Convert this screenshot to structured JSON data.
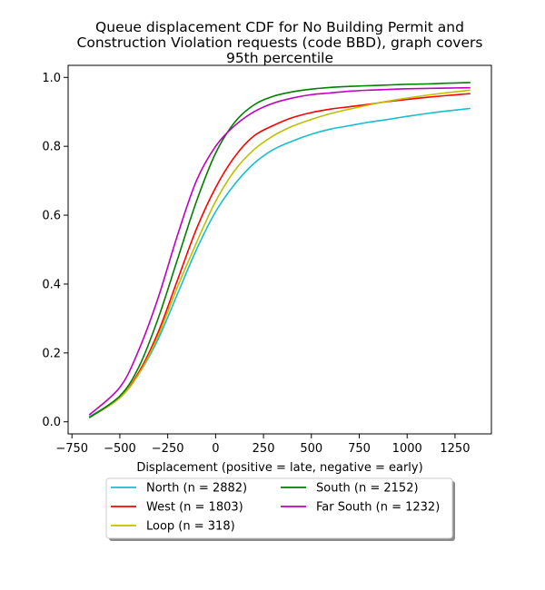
{
  "chart_data": {
    "type": "line",
    "title": "Queue displacement CDF for No Building Permit and\nConstruction Violation  requests (code BBD), graph covers\n95th percentile",
    "xlabel": "Displacement (positive = late, negative = early)",
    "ylabel": "",
    "xlim": [
      -770,
      1440
    ],
    "ylim": [
      -0.035,
      1.035
    ],
    "xticks": [
      -750,
      -500,
      -250,
      0,
      250,
      500,
      750,
      1000,
      1250
    ],
    "xtick_labels": [
      "−750",
      "−500",
      "−250",
      "0",
      "250",
      "500",
      "750",
      "1000",
      "1250"
    ],
    "yticks": [
      0.0,
      0.2,
      0.4,
      0.6,
      0.8,
      1.0
    ],
    "ytick_labels": [
      "0.0",
      "0.2",
      "0.4",
      "0.6",
      "0.8",
      "1.0"
    ],
    "grid": false,
    "legend_position": "below",
    "x": [
      -660,
      -500,
      -400,
      -300,
      -200,
      -100,
      0,
      100,
      200,
      300,
      400,
      500,
      600,
      700,
      800,
      900,
      1000,
      1100,
      1200,
      1330
    ],
    "series": [
      {
        "name": "North (n = 2882)",
        "color": "#17becf",
        "values": [
          0.015,
          0.07,
          0.14,
          0.24,
          0.37,
          0.5,
          0.61,
          0.69,
          0.75,
          0.79,
          0.815,
          0.835,
          0.85,
          0.86,
          0.87,
          0.878,
          0.887,
          0.895,
          0.902,
          0.91
        ]
      },
      {
        "name": "West (n = 1803)",
        "color": "#ff0000",
        "values": [
          0.012,
          0.07,
          0.145,
          0.26,
          0.41,
          0.56,
          0.68,
          0.77,
          0.83,
          0.86,
          0.883,
          0.898,
          0.908,
          0.915,
          0.922,
          0.93,
          0.936,
          0.942,
          0.947,
          0.953
        ]
      },
      {
        "name": "Loop (n = 318)",
        "color": "#bfbf00",
        "values": [
          0.012,
          0.07,
          0.14,
          0.25,
          0.39,
          0.52,
          0.64,
          0.73,
          0.79,
          0.83,
          0.858,
          0.878,
          0.895,
          0.908,
          0.92,
          0.931,
          0.94,
          0.948,
          0.955,
          0.963
        ]
      },
      {
        "name": "South (n = 2152)",
        "color": "#008000",
        "values": [
          0.012,
          0.075,
          0.16,
          0.3,
          0.47,
          0.64,
          0.78,
          0.87,
          0.92,
          0.945,
          0.958,
          0.966,
          0.971,
          0.974,
          0.976,
          0.978,
          0.98,
          0.981,
          0.983,
          0.985
        ]
      },
      {
        "name": "Far South (n = 1232)",
        "color": "#bf00bf",
        "values": [
          0.02,
          0.1,
          0.21,
          0.36,
          0.54,
          0.7,
          0.8,
          0.86,
          0.9,
          0.925,
          0.94,
          0.95,
          0.955,
          0.96,
          0.963,
          0.965,
          0.967,
          0.968,
          0.969,
          0.97
        ]
      }
    ]
  }
}
